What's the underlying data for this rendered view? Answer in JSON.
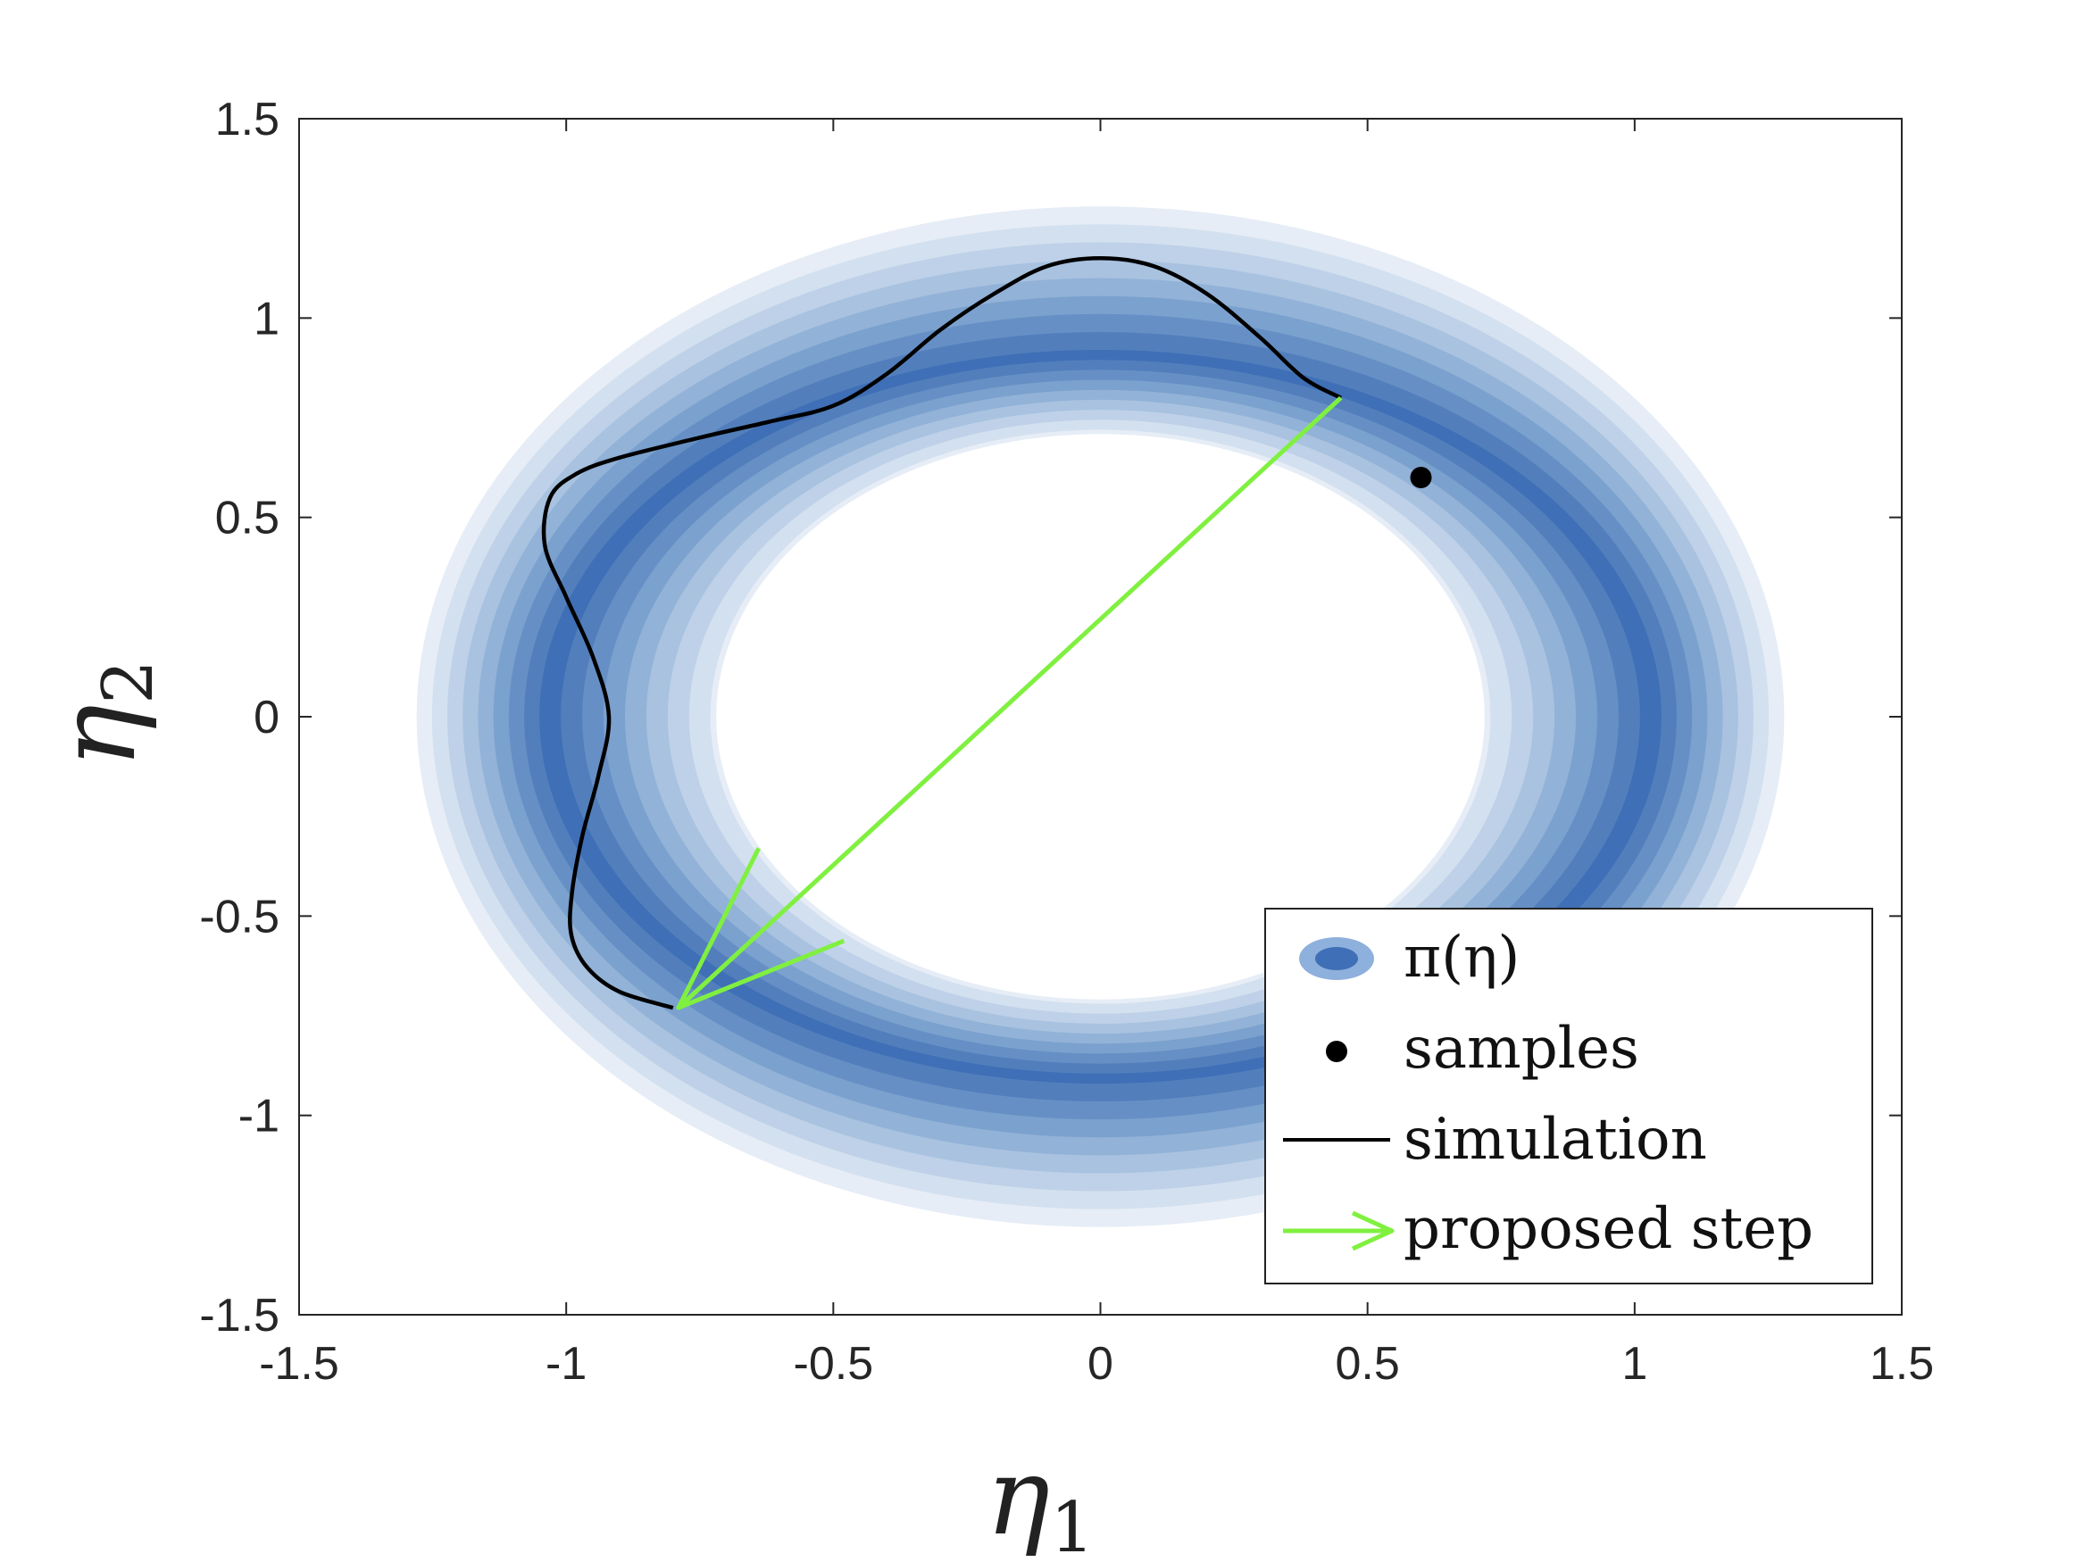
{
  "chart_data": {
    "type": "contour",
    "xlabel": "η",
    "xlabel_sub": "1",
    "ylabel": "η",
    "ylabel_sub": "2",
    "xlim": [
      -1.5,
      1.5
    ],
    "ylim": [
      -1.5,
      1.5
    ],
    "xticks": [
      -1.5,
      -1,
      -0.5,
      0,
      0.5,
      1,
      1.5
    ],
    "yticks": [
      -1.5,
      -1,
      -0.5,
      0,
      0.5,
      1,
      1.5
    ],
    "xtick_labels": [
      "-1.5",
      "-1",
      "-0.5",
      "0",
      "0.5",
      "1",
      "1.5"
    ],
    "ytick_labels": [
      "-1.5",
      "-1",
      "-0.5",
      "0",
      "0.5",
      "1",
      "1.5"
    ],
    "grid": false,
    "legend_position": "bottom-right",
    "legend": [
      {
        "label": "π(η)",
        "kind": "density"
      },
      {
        "label": "samples",
        "kind": "marker"
      },
      {
        "label": "simulation",
        "kind": "line"
      },
      {
        "label": "proposed step",
        "kind": "arrow"
      }
    ],
    "density": {
      "name": "π(η)",
      "shape": "ring",
      "center": [
        0,
        0
      ],
      "ring_radius_x": 1.05,
      "ring_radius_y": 0.92,
      "outer_extent_x": 1.28,
      "outer_extent_y": 1.28,
      "inner_hole_x": 0.73,
      "inner_hole_y": 0.72,
      "colors": [
        "#e6edf6",
        "#d3e0ef",
        "#bed1e8",
        "#a8c2e0",
        "#92b2d7",
        "#7ba1ce",
        "#6690c5",
        "#527fbc",
        "#3f6fb6"
      ]
    },
    "samples": [
      {
        "x": 0.6,
        "y": 0.6
      }
    ],
    "simulation": {
      "name": "simulation",
      "color": "#000000",
      "points": [
        [
          0.45,
          0.8
        ],
        [
          0.38,
          0.85
        ],
        [
          0.3,
          0.95
        ],
        [
          0.2,
          1.06
        ],
        [
          0.1,
          1.13
        ],
        [
          0.0,
          1.15
        ],
        [
          -0.1,
          1.13
        ],
        [
          -0.2,
          1.06
        ],
        [
          -0.3,
          0.97
        ],
        [
          -0.4,
          0.86
        ],
        [
          -0.5,
          0.78
        ],
        [
          -0.62,
          0.74
        ],
        [
          -0.75,
          0.7
        ],
        [
          -0.9,
          0.65
        ],
        [
          -0.98,
          0.61
        ],
        [
          -1.03,
          0.55
        ],
        [
          -1.04,
          0.43
        ],
        [
          -1.0,
          0.3
        ],
        [
          -0.95,
          0.15
        ],
        [
          -0.92,
          0.0
        ],
        [
          -0.94,
          -0.15
        ],
        [
          -0.97,
          -0.3
        ],
        [
          -0.99,
          -0.45
        ],
        [
          -0.99,
          -0.55
        ],
        [
          -0.96,
          -0.63
        ],
        [
          -0.9,
          -0.69
        ],
        [
          -0.8,
          -0.73
        ]
      ]
    },
    "proposed_step": {
      "name": "proposed step",
      "color": "#80f040",
      "from": [
        0.45,
        0.8
      ],
      "to": [
        -0.79,
        -0.73
      ]
    }
  }
}
